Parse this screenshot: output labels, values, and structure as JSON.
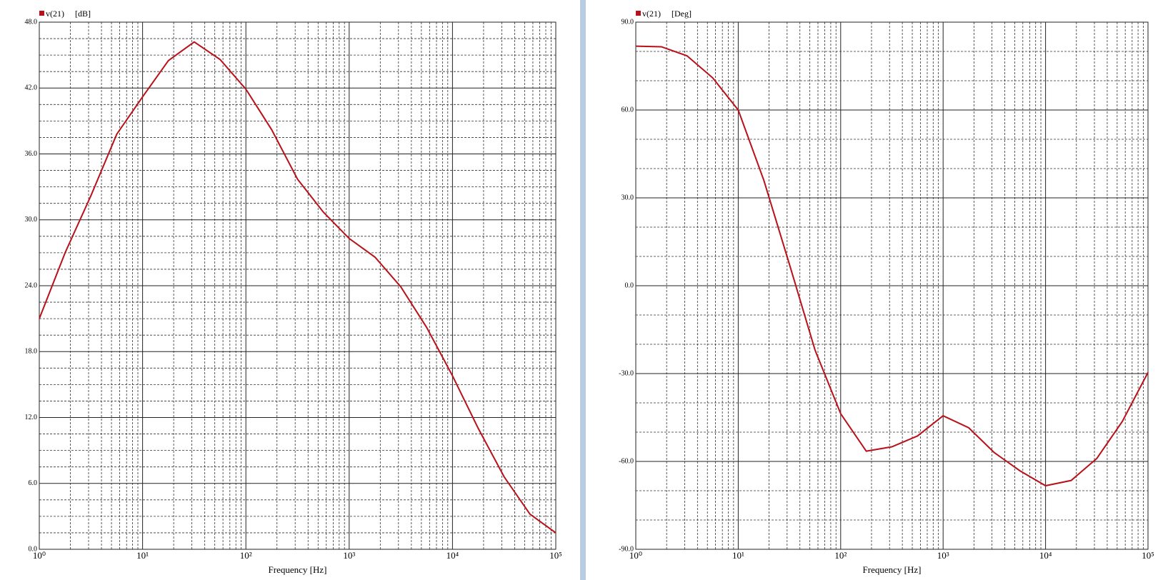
{
  "chart_data": [
    {
      "type": "line",
      "xlabel": "Frequency [Hz]",
      "ylabel": "[dB]",
      "log_x": true,
      "grid": true,
      "x": [
        1,
        1.778,
        3.162,
        5.623,
        10,
        17.78,
        31.62,
        56.23,
        100,
        177.8,
        316.2,
        562.3,
        1000,
        1778,
        3162,
        5623,
        10000,
        17780,
        31620,
        56230,
        100000
      ],
      "series": [
        {
          "name": "v(21)",
          "color": "#b8111a",
          "values": [
            21.0,
            27.0,
            32.2,
            37.8,
            41.2,
            44.5,
            46.2,
            44.6,
            41.9,
            38.2,
            33.7,
            30.7,
            28.3,
            26.6,
            23.9,
            20.2,
            15.8,
            11.0,
            6.6,
            3.2,
            1.5
          ]
        }
      ],
      "xlim": [
        1,
        100000
      ],
      "xticks": [
        {
          "value": 1,
          "label": "10⁰"
        },
        {
          "value": 10,
          "label": "10¹"
        },
        {
          "value": 100,
          "label": "10²"
        },
        {
          "value": 1000,
          "label": "10³"
        },
        {
          "value": 10000,
          "label": "10⁴"
        },
        {
          "value": 100000,
          "label": "10⁵"
        }
      ],
      "x_minor_ticks": [
        2,
        3,
        4,
        5,
        6,
        7,
        8,
        9,
        20,
        30,
        40,
        50,
        60,
        70,
        80,
        90,
        200,
        300,
        400,
        500,
        600,
        700,
        800,
        900,
        2000,
        3000,
        4000,
        5000,
        6000,
        7000,
        8000,
        9000,
        20000,
        30000,
        40000,
        50000,
        60000,
        70000,
        80000,
        90000
      ],
      "ylim": [
        0,
        48
      ],
      "yticks": [
        {
          "value": 0,
          "label": "0.0"
        },
        {
          "value": 6,
          "label": "6.0"
        },
        {
          "value": 12,
          "label": "12.0"
        },
        {
          "value": 18,
          "label": "18.0"
        },
        {
          "value": 24,
          "label": "24.0"
        },
        {
          "value": 30,
          "label": "30.0"
        },
        {
          "value": 36,
          "label": "36.0"
        },
        {
          "value": 42,
          "label": "42.0"
        },
        {
          "value": 48,
          "label": "48.0"
        }
      ],
      "y_minor_ticks": [
        1.5,
        3,
        4.5,
        7.5,
        9,
        10.5,
        13.5,
        15,
        16.5,
        19.5,
        21,
        22.5,
        25.5,
        27,
        28.5,
        31.5,
        33,
        34.5,
        37.5,
        39,
        40.5,
        43.5,
        45,
        46.5
      ]
    },
    {
      "type": "line",
      "xlabel": "Frequency [Hz]",
      "ylabel": "[Deg]",
      "log_x": true,
      "grid": true,
      "x": [
        1,
        1.778,
        3.162,
        5.623,
        10,
        17.78,
        31.62,
        56.23,
        100,
        177.8,
        316.2,
        562.3,
        1000,
        1778,
        3162,
        5623,
        10000,
        17780,
        31620,
        56230,
        100000
      ],
      "series": [
        {
          "name": "v(21)",
          "color": "#b8111a",
          "values": [
            81.8,
            81.6,
            78.5,
            71.0,
            60.0,
            36.0,
            7.3,
            -22.0,
            -43.7,
            -56.5,
            -55.0,
            -51.3,
            -44.4,
            -48.5,
            -57.0,
            -63.2,
            -68.3,
            -66.5,
            -59.0,
            -46.3,
            -29.6
          ]
        }
      ],
      "xlim": [
        1,
        100000
      ],
      "xticks": [
        {
          "value": 1,
          "label": "10⁰"
        },
        {
          "value": 10,
          "label": "10¹"
        },
        {
          "value": 100,
          "label": "10²"
        },
        {
          "value": 1000,
          "label": "10³"
        },
        {
          "value": 10000,
          "label": "10⁴"
        },
        {
          "value": 100000,
          "label": "10⁵"
        }
      ],
      "x_minor_ticks": [
        2,
        3,
        4,
        5,
        6,
        7,
        8,
        9,
        20,
        30,
        40,
        50,
        60,
        70,
        80,
        90,
        200,
        300,
        400,
        500,
        600,
        700,
        800,
        900,
        2000,
        3000,
        4000,
        5000,
        6000,
        7000,
        8000,
        9000,
        20000,
        30000,
        40000,
        50000,
        60000,
        70000,
        80000,
        90000
      ],
      "ylim": [
        -90,
        90
      ],
      "yticks": [
        {
          "value": -90,
          "label": "-90.0"
        },
        {
          "value": -60,
          "label": "-60.0"
        },
        {
          "value": -30,
          "label": "-30.0"
        },
        {
          "value": 0,
          "label": "0.0"
        },
        {
          "value": 30,
          "label": "30.0"
        },
        {
          "value": 60,
          "label": "60.0"
        },
        {
          "value": 90,
          "label": "90.0"
        }
      ],
      "y_minor_ticks": [
        -80,
        -70,
        -50,
        -40,
        -20,
        -10,
        10,
        20,
        40,
        50,
        70,
        80
      ]
    }
  ]
}
